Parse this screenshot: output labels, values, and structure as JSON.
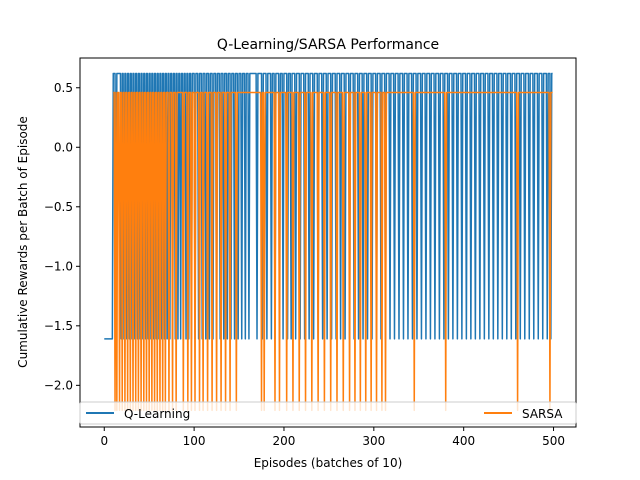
{
  "chart_data": {
    "type": "line",
    "title": "Q-Learning/SARSA Performance",
    "xlabel": "Episodes (batches of 10)",
    "ylabel": "Cumulative Rewards per Batch of Episode",
    "xlim": [
      -27,
      525
    ],
    "ylim": [
      -2.35,
      0.75
    ],
    "xticks": [
      0,
      100,
      200,
      300,
      400,
      500
    ],
    "yticks": [
      0.5,
      0.0,
      -0.5,
      -1.0,
      -1.5,
      -2.0
    ],
    "ytick_labels": [
      "0.5",
      "0.0",
      "−0.5",
      "−1.0",
      "−1.5",
      "−2.0"
    ],
    "legend_position": "bottom",
    "series": [
      {
        "name": "Q-Learning",
        "color": "#1f77b4",
        "high": 0.62,
        "low": -1.61,
        "start_value": -1.61,
        "first_high_episode": 10,
        "last_episode": 499,
        "low_episodes": [
          13,
          19,
          22,
          25,
          28,
          31,
          34,
          37,
          40,
          43,
          46,
          49,
          52,
          55,
          58,
          61,
          64,
          67,
          70,
          73,
          76,
          79,
          82,
          85,
          88,
          91,
          94,
          97,
          101,
          105,
          109,
          113,
          117,
          121,
          125,
          129,
          133,
          137,
          141,
          145,
          149,
          153,
          157,
          161,
          170,
          176,
          181,
          186,
          190,
          195,
          199,
          204,
          208,
          213,
          218,
          223,
          228,
          233,
          238,
          243,
          248,
          253,
          258,
          263,
          268,
          273,
          278,
          283,
          288,
          293,
          298,
          303,
          308,
          313,
          318,
          323,
          328,
          333,
          338,
          343,
          348,
          353,
          358,
          363,
          368,
          373,
          378,
          383,
          388,
          393,
          398,
          403,
          408,
          413,
          418,
          423,
          428,
          433,
          438,
          443,
          448,
          453,
          458,
          463,
          468,
          473,
          478,
          483,
          488,
          493,
          497
        ]
      },
      {
        "name": "SARSA",
        "color": "#ff7f0e",
        "high": 0.46,
        "low": -2.21,
        "start_episode": 10,
        "last_episode": 499,
        "low_episodes": [
          12,
          14,
          17,
          20,
          23,
          26,
          29,
          32,
          35,
          38,
          41,
          44,
          47,
          50,
          53,
          56,
          59,
          62,
          65,
          68,
          72,
          76,
          80,
          88,
          93,
          97,
          101,
          106,
          110,
          115,
          120,
          125,
          130,
          135,
          140,
          147,
          175,
          178,
          190,
          195,
          203,
          210,
          217,
          224,
          231,
          238,
          245,
          252,
          259,
          266,
          273,
          279,
          285,
          291,
          297,
          303,
          309,
          313,
          345,
          380,
          460,
          496
        ]
      }
    ]
  }
}
